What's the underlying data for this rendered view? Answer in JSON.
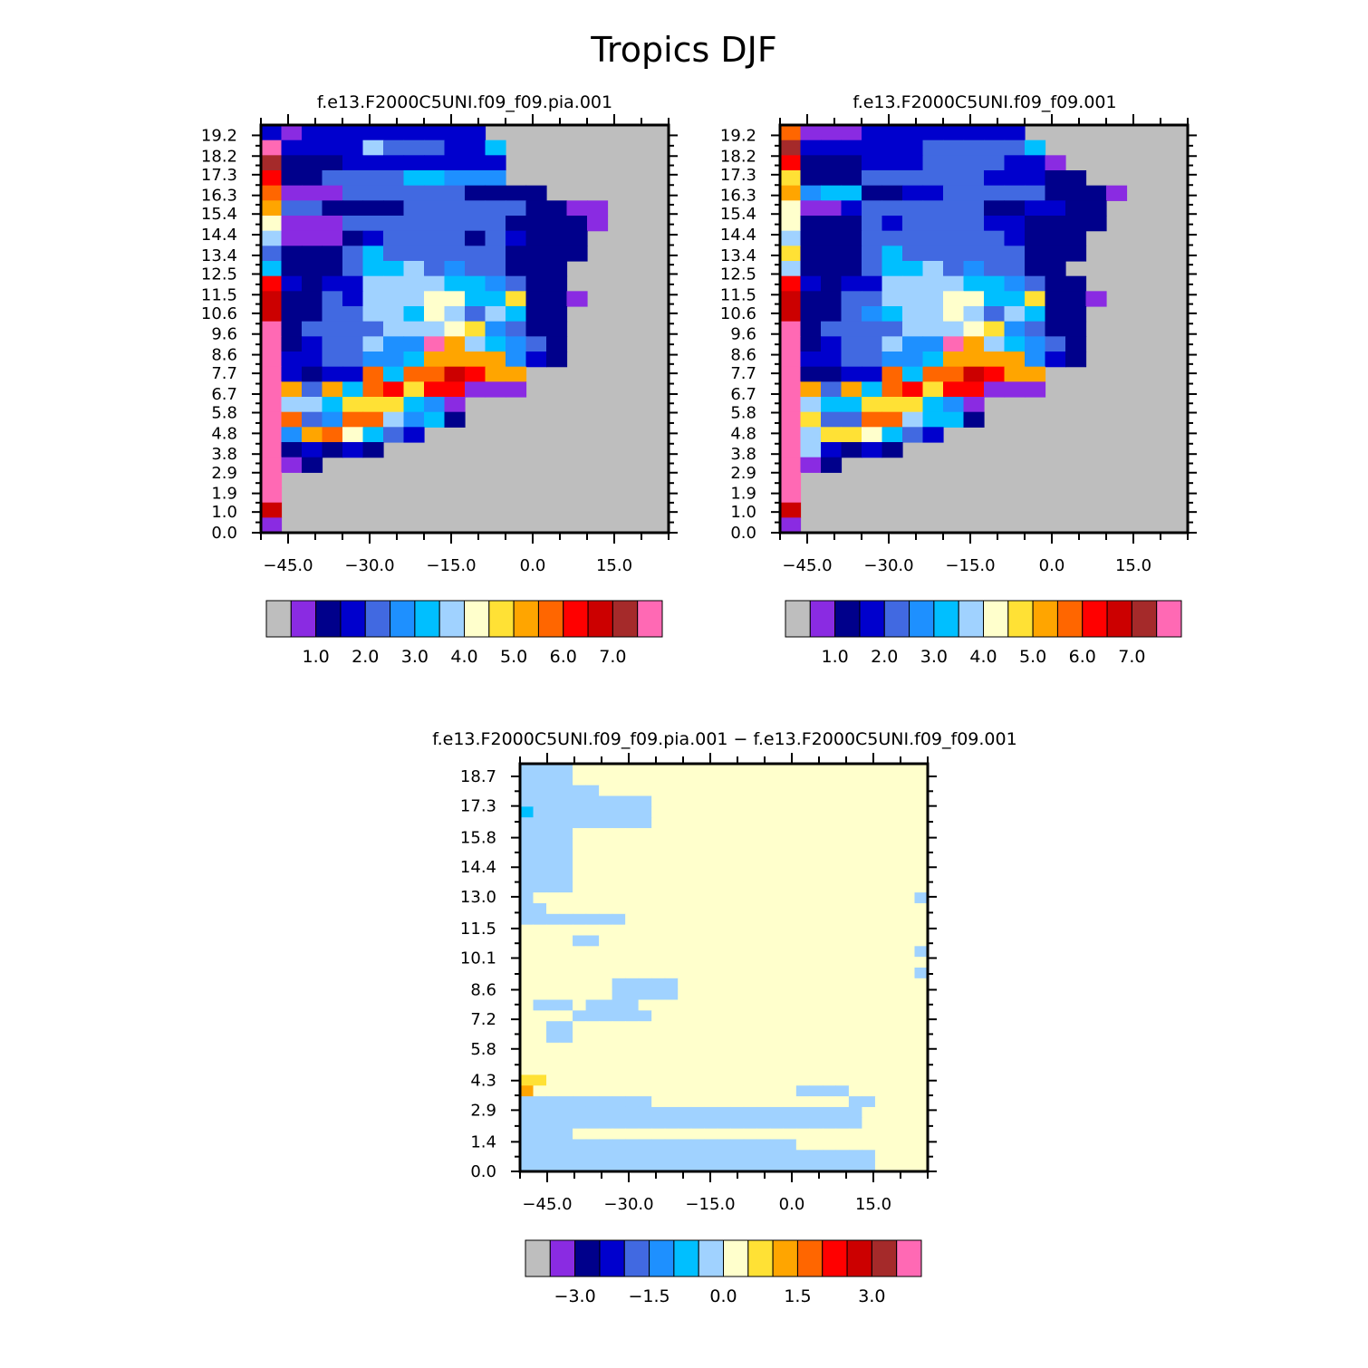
{
  "title": "Tropics DJF",
  "colors": {
    "missing": "#bebebe",
    "frame": "#000000",
    "palette": [
      "#bebebe",
      "#8a2be2",
      "#00008b",
      "#0000cd",
      "#4169e1",
      "#1e90ff",
      "#00bfff",
      "#a0d2ff",
      "#ffffcc",
      "#ffe135",
      "#ffa500",
      "#ff6600",
      "#ff0000",
      "#cc0000",
      "#a52a2a",
      "#ff69b4"
    ]
  },
  "chart_data": [
    {
      "type": "heatmap",
      "title": "f.e13.F2000C5UNI.f09_f09.pia.001",
      "x_ticks": [
        "−45.0",
        "−30.0",
        "−15.0",
        "0.0",
        "15.0"
      ],
      "y_ticks": [
        "0.0",
        "1.0",
        "1.9",
        "2.9",
        "3.8",
        "4.8",
        "5.8",
        "6.7",
        "7.7",
        "8.6",
        "9.6",
        "10.6",
        "11.5",
        "12.5",
        "13.4",
        "14.4",
        "15.4",
        "16.3",
        "17.3",
        "18.2",
        "19.2"
      ],
      "xlim": [
        -50,
        25
      ],
      "ylim": [
        0,
        19.7
      ],
      "colorbar": {
        "labels": [
          "1.0",
          "2.0",
          "3.0",
          "4.0",
          "5.0",
          "6.0",
          "7.0"
        ]
      },
      "grid_rows": [
        "3133333333300000",
        "f3333744433600000",
        "e2223333333300000",
        "c2244446655500000",
        "b1114444442222000",
        "a4422224444442211",
        "81114444444422221",
        "71112344442432220",
        "42224644444422220",
        "62224667454422200",
        "c3233777766542200",
        "d2243777886692210",
        "d2244776874762200",
        "f2444477789542200",
        "f2344755fa76542000",
        "f3344556aaaa53200",
        "f3233b6bbdcaa00000",
        "fa4a6bc9cc111000000",
        "f776999651000000000",
        "fb45bb7562000000000",
        "f5ab8643000000000000",
        "f2323200000000000000",
        "f1200000000000000000",
        "f0000000000000000000",
        "f0000000000000000000",
        "d0000000000000000000",
        "1000000000000000000"
      ]
    },
    {
      "type": "heatmap",
      "title": "f.e13.F2000C5UNI.f09_f09.001",
      "x_ticks": [
        "−45.0",
        "−30.0",
        "−15.0",
        "0.0",
        "15.0"
      ],
      "y_ticks": [
        "0.0",
        "1.0",
        "1.9",
        "2.9",
        "3.8",
        "4.8",
        "5.8",
        "6.7",
        "7.7",
        "8.6",
        "9.6",
        "10.6",
        "11.5",
        "12.5",
        "13.4",
        "14.4",
        "15.4",
        "16.3",
        "17.3",
        "18.2",
        "19.2"
      ],
      "xlim": [
        -50,
        25
      ],
      "ylim": [
        0,
        19.7
      ],
      "colorbar": {
        "labels": [
          "1.0",
          "2.0",
          "3.0",
          "4.0",
          "5.0",
          "6.0",
          "7.0"
        ]
      },
      "grid_rows": [
        "b1113333333300000",
        "e3333334444460000",
        "c2223334444331000",
        "9222444444333220",
        "a5662233444442221",
        "81134444442233220",
        "82224344443322220",
        "72224444444322200",
        "92224644444422200",
        "7222466745442200",
        "c3233777766542200",
        "d2244777886692210",
        "d2245677874762200",
        "f2444477789542200",
        "f2344755fa76542000",
        "f3344556aaaa53200",
        "f2233b6bbdcaa00000",
        "fa4a6bc9cc111000000",
        "f766999651000000000",
        "f944bb7662000000000",
        "f7998643000000000000",
        "f7323200000000000000",
        "f1200000000000000000",
        "f0000000000000000000",
        "f0000000000000000000",
        "d0000000000000000000",
        "1000000000000000000"
      ]
    },
    {
      "type": "heatmap",
      "title": "f.e13.F2000C5UNI.f09_f09.pia.001 − f.e13.F2000C5UNI.f09_f09.001",
      "x_ticks": [
        "−45.0",
        "−30.0",
        "−15.0",
        "0.0",
        "15.0"
      ],
      "y_ticks": [
        "0.0",
        "1.4",
        "2.9",
        "4.3",
        "5.8",
        "7.2",
        "8.6",
        "10.1",
        "11.5",
        "13.0",
        "14.4",
        "15.8",
        "17.3",
        "18.7"
      ],
      "xlim": [
        -50,
        25
      ],
      "ylim": [
        0,
        19.3
      ],
      "colorbar": {
        "labels": [
          "−3.0",
          "−1.5",
          "0.0",
          "1.5",
          "3.0"
        ]
      },
      "grid_rows": [
        "7777888888888888888888888888888",
        "7777888888888888888888888888888",
        "7777778888888888888888888888888",
        "7777777777888888888888888888888",
        "6777777777888888888888888888888",
        "7777777777888888888888888888888",
        "7777888888888888888888888888888",
        "7777888888888888888888888888888",
        "7777888888888888888888888888888",
        "7777888888888888888888888888888",
        "7777888888888888888888888888888",
        "7777888888888888888888888888888",
        "7888888888888888888888888888887",
        "7788888888888888888888888888888",
        "7777777788888888888888888888888",
        "8888888888888888888888888888888",
        "8888778888888888888888888888888",
        "8888888888888888888888888888887",
        "8888888888888888888888888888888",
        "8888888888888888888888888888887",
        "8888888777778888888888888888888",
        "8888888777778888888888888888888",
        "8777877778888888888888888888888",
        "8888777777888888888888888888888",
        "8877888888888888888888888888888",
        "8877888888888888888888888888888",
        "8888888888888888888888888888888",
        "8888888888888888888888888888888",
        "8888888888888888888888888888888",
        "9988888888888888888888888888888",
        "a888888888888888888887777888888",
        "7777777777888888888888888778888",
        "7777777777777777777777777788888",
        "7777777777777777777777777788888",
        "7777888888888888888888888888888",
        "7777777777777777777778888888888",
        "7777777777777777777777777778888",
        "7777777777777777777777777778888"
      ]
    }
  ]
}
